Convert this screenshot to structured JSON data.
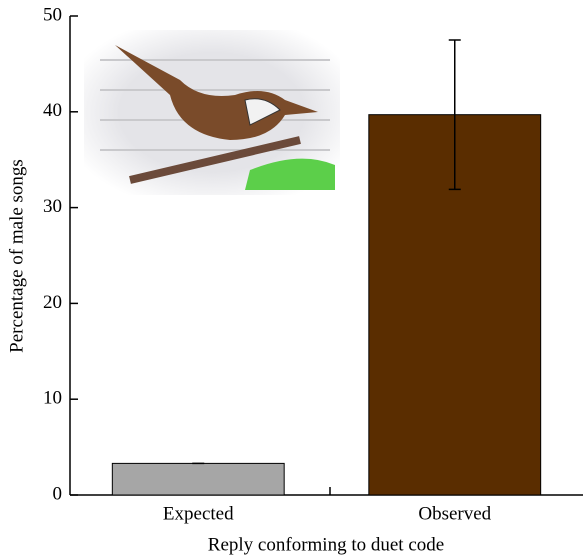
{
  "chart_data": {
    "type": "bar",
    "x_label": "Reply conforming to duet code",
    "y_label": "Percentage of male songs",
    "categories": [
      "Expected",
      "Observed"
    ],
    "values": [
      3.3,
      39.7
    ],
    "errors": [
      0,
      7.8
    ],
    "colors": [
      "#a6a6a6",
      "#5a2d00"
    ],
    "ylim": [
      0,
      50
    ],
    "yticks": [
      0,
      10,
      20,
      30,
      40,
      50
    ]
  }
}
